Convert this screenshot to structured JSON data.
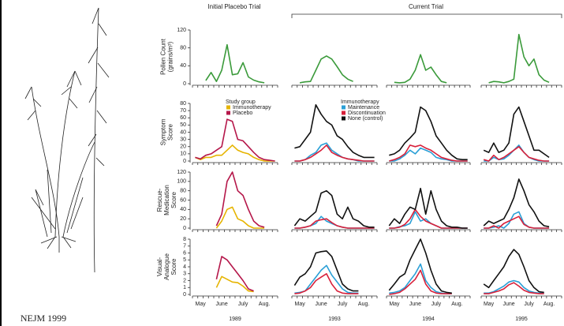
{
  "header": {
    "left": "Initial Placebo Trial",
    "right": "Current Trial"
  },
  "footer": "NEJM 1999",
  "chart_data": [
    {
      "type": "line",
      "ylabel": [
        "Pollen Count",
        "(grains/m³)"
      ],
      "ylim": [
        0,
        120
      ],
      "yticks": [
        0,
        40,
        80,
        120
      ],
      "series": [
        {
          "color": "#3a9a3a",
          "values": [
            null,
            null,
            7,
            25,
            5,
            30,
            87,
            20,
            22,
            47,
            15,
            8,
            4,
            2,
            null,
            null
          ]
        }
      ]
    },
    {
      "type": "line",
      "ylim": [
        0,
        120
      ],
      "series": [
        {
          "color": "#3a9a3a",
          "values": [
            null,
            2,
            4,
            5,
            30,
            55,
            62,
            55,
            38,
            20,
            10,
            5,
            null,
            null,
            null,
            null
          ]
        }
      ]
    },
    {
      "type": "line",
      "ylim": [
        0,
        120
      ],
      "series": [
        {
          "color": "#3a9a3a",
          "values": [
            null,
            3,
            2,
            3,
            10,
            30,
            65,
            30,
            37,
            20,
            5,
            2,
            null,
            null,
            null,
            null
          ]
        }
      ]
    },
    {
      "type": "line",
      "ylim": [
        0,
        120
      ],
      "series": [
        {
          "color": "#3a9a3a",
          "values": [
            null,
            2,
            5,
            4,
            2,
            5,
            10,
            110,
            60,
            40,
            55,
            20,
            8,
            3,
            null,
            null
          ]
        }
      ]
    },
    {
      "type": "line",
      "ylabel": [
        "Symptom",
        "Score"
      ],
      "ylim": [
        0,
        80
      ],
      "yticks": [
        0,
        10,
        20,
        30,
        40,
        50,
        60,
        70,
        80
      ],
      "legend_title": "Study group",
      "series": [
        {
          "name": "Immunotherapy",
          "color": "#e6b400",
          "values": [
            5,
            2,
            5,
            5,
            8,
            8,
            15,
            22,
            15,
            12,
            10,
            5,
            2,
            0,
            0,
            0
          ]
        },
        {
          "name": "Placebo",
          "color": "#b5174a",
          "values": [
            5,
            3,
            8,
            10,
            15,
            20,
            58,
            55,
            30,
            28,
            20,
            12,
            5,
            2,
            1,
            0
          ]
        }
      ]
    },
    {
      "type": "line",
      "ylim": [
        0,
        80
      ],
      "legend_title": "Immunotherapy",
      "series": [
        {
          "name": "Maintenance",
          "color": "#2a9fd6",
          "values": [
            0,
            0,
            2,
            8,
            12,
            22,
            25,
            15,
            10,
            5,
            3,
            2,
            0,
            0,
            0,
            0
          ]
        },
        {
          "name": "Discontinuation",
          "color": "#d8203a",
          "values": [
            0,
            0,
            2,
            5,
            10,
            15,
            22,
            12,
            8,
            5,
            3,
            2,
            1,
            0,
            0,
            0
          ]
        },
        {
          "name": "None (control)",
          "color": "#111111",
          "values": [
            18,
            20,
            30,
            40,
            78,
            65,
            55,
            50,
            35,
            30,
            20,
            12,
            8,
            5,
            5,
            5
          ]
        }
      ]
    },
    {
      "type": "line",
      "ylim": [
        0,
        80
      ],
      "series": [
        {
          "color": "#2a9fd6",
          "values": [
            0,
            0,
            3,
            8,
            15,
            10,
            18,
            15,
            12,
            5,
            3,
            2,
            0,
            0,
            0,
            0
          ]
        },
        {
          "color": "#d8203a",
          "values": [
            0,
            2,
            5,
            10,
            22,
            20,
            22,
            18,
            15,
            10,
            5,
            3,
            1,
            0,
            0,
            0
          ]
        },
        {
          "color": "#111111",
          "values": [
            8,
            10,
            15,
            25,
            32,
            40,
            75,
            70,
            55,
            35,
            25,
            15,
            8,
            3,
            2,
            2
          ]
        }
      ]
    },
    {
      "type": "line",
      "ylim": [
        0,
        80
      ],
      "series": [
        {
          "color": "#2a9fd6",
          "values": [
            0,
            0,
            5,
            2,
            3,
            8,
            15,
            22,
            12,
            5,
            2,
            0,
            0,
            0,
            null,
            null
          ]
        },
        {
          "color": "#d8203a",
          "values": [
            2,
            0,
            8,
            2,
            5,
            10,
            15,
            20,
            12,
            5,
            3,
            1,
            0,
            0,
            null,
            null
          ]
        },
        {
          "color": "#111111",
          "values": [
            15,
            12,
            25,
            12,
            15,
            25,
            65,
            75,
            55,
            35,
            15,
            15,
            10,
            5,
            null,
            null
          ]
        }
      ]
    },
    {
      "type": "line",
      "ylabel": [
        "Rescue-",
        "Medication",
        "Score"
      ],
      "ylim": [
        0,
        120
      ],
      "yticks": [
        0,
        20,
        40,
        60,
        80,
        100,
        120
      ],
      "series": [
        {
          "color": "#e6b400",
          "values": [
            null,
            null,
            null,
            null,
            0,
            15,
            40,
            45,
            20,
            15,
            5,
            0,
            0,
            0,
            null,
            null
          ]
        },
        {
          "color": "#b5174a",
          "values": [
            null,
            null,
            null,
            null,
            5,
            30,
            100,
            120,
            80,
            70,
            40,
            15,
            5,
            2,
            null,
            null
          ]
        }
      ]
    },
    {
      "type": "line",
      "ylim": [
        0,
        120
      ],
      "series": [
        {
          "color": "#2a9fd6",
          "values": [
            0,
            0,
            2,
            5,
            10,
            25,
            15,
            10,
            5,
            2,
            0,
            0,
            0,
            0,
            0,
            0
          ]
        },
        {
          "color": "#d8203a",
          "values": [
            0,
            0,
            2,
            5,
            15,
            18,
            20,
            12,
            5,
            2,
            0,
            0,
            0,
            0,
            0,
            0
          ]
        },
        {
          "color": "#111111",
          "values": [
            5,
            20,
            15,
            25,
            35,
            75,
            80,
            70,
            30,
            20,
            45,
            20,
            15,
            5,
            2,
            2
          ]
        }
      ]
    },
    {
      "type": "line",
      "ylim": [
        0,
        120
      ],
      "series": [
        {
          "color": "#2a9fd6",
          "values": [
            0,
            0,
            3,
            5,
            10,
            35,
            15,
            20,
            10,
            5,
            0,
            0,
            0,
            0,
            0,
            0
          ]
        },
        {
          "color": "#d8203a",
          "values": [
            0,
            0,
            2,
            8,
            20,
            40,
            25,
            15,
            10,
            5,
            0,
            0,
            0,
            0,
            0,
            0
          ]
        },
        {
          "color": "#111111",
          "values": [
            5,
            20,
            10,
            30,
            45,
            40,
            85,
            30,
            80,
            40,
            15,
            5,
            2,
            2,
            0,
            0
          ]
        }
      ]
    },
    {
      "type": "line",
      "ylim": [
        0,
        120
      ],
      "series": [
        {
          "color": "#2a9fd6",
          "values": [
            0,
            0,
            2,
            5,
            0,
            10,
            30,
            35,
            10,
            2,
            0,
            0,
            0,
            0,
            null,
            null
          ]
        },
        {
          "color": "#d8203a",
          "values": [
            0,
            0,
            5,
            0,
            10,
            15,
            20,
            25,
            8,
            2,
            0,
            0,
            0,
            0,
            null,
            null
          ]
        },
        {
          "color": "#111111",
          "values": [
            5,
            15,
            10,
            15,
            20,
            40,
            65,
            105,
            80,
            50,
            35,
            15,
            5,
            3,
            null,
            null
          ]
        }
      ]
    },
    {
      "type": "line",
      "ylabel": [
        "Visual-",
        "Analogue",
        "Score"
      ],
      "ylim": [
        0,
        8
      ],
      "yticks": [
        0,
        1,
        2,
        3,
        4,
        5,
        6,
        7,
        8
      ],
      "xlabel": "1989",
      "categories": [
        null,
        "May",
        null,
        null,
        null,
        "June",
        null,
        null,
        null,
        "July",
        null,
        null,
        null,
        "Aug.",
        null,
        null
      ],
      "series": [
        {
          "color": "#e6b400",
          "values": [
            null,
            null,
            null,
            null,
            1,
            2.6,
            2.2,
            1.8,
            1.7,
            1.2,
            0.5,
            0.4,
            null,
            null,
            null,
            null
          ]
        },
        {
          "color": "#b5174a",
          "values": [
            null,
            null,
            null,
            null,
            2.2,
            5.5,
            5,
            4,
            3,
            2,
            0.8,
            0.5,
            null,
            null,
            null,
            null
          ]
        }
      ]
    },
    {
      "type": "line",
      "ylim": [
        0,
        8
      ],
      "xlabel": "1993",
      "categories": [
        null,
        "May",
        null,
        null,
        null,
        "June",
        null,
        null,
        null,
        "July",
        null,
        null,
        null,
        "Aug.",
        null,
        null
      ],
      "series": [
        {
          "color": "#2a9fd6",
          "values": [
            0.2,
            0.3,
            0.5,
            1.5,
            2.5,
            3.5,
            4.2,
            2.8,
            1.8,
            0.8,
            0.3,
            0.2,
            0.2,
            null,
            null,
            null
          ]
        },
        {
          "color": "#d8203a",
          "values": [
            0.1,
            0.2,
            0.5,
            1,
            2,
            2.5,
            3,
            1.5,
            0.5,
            0.2,
            0.1,
            0.1,
            0.1,
            null,
            null,
            null
          ]
        },
        {
          "color": "#111111",
          "values": [
            1.3,
            2.5,
            3,
            4,
            6,
            6.2,
            6.3,
            5.5,
            3.5,
            1.5,
            0.8,
            0.5,
            0.5,
            null,
            null,
            null
          ]
        }
      ]
    },
    {
      "type": "line",
      "ylim": [
        0,
        8
      ],
      "xlabel": "1994",
      "categories": [
        null,
        "May",
        null,
        null,
        null,
        "June",
        null,
        null,
        null,
        "July",
        null,
        null,
        null,
        "Aug.",
        null,
        null
      ],
      "series": [
        {
          "color": "#2a9fd6",
          "values": [
            0.2,
            0.3,
            0.5,
            1,
            2,
            3,
            4.4,
            2,
            1,
            0.4,
            0.2,
            0.1,
            0.1,
            null,
            null,
            null
          ]
        },
        {
          "color": "#d8203a",
          "values": [
            0,
            0.1,
            0.3,
            0.8,
            1.5,
            2.2,
            3.5,
            1.5,
            0.5,
            0.2,
            0.1,
            0.1,
            0.1,
            null,
            null,
            null
          ]
        },
        {
          "color": "#111111",
          "values": [
            0.6,
            1.5,
            2.5,
            3,
            5,
            6.5,
            8,
            6,
            3.5,
            1.5,
            0.5,
            0.3,
            0.2,
            null,
            null,
            null
          ]
        }
      ]
    },
    {
      "type": "line",
      "ylim": [
        0,
        8
      ],
      "xlabel": "1995",
      "categories": [
        null,
        "May",
        null,
        null,
        null,
        "June",
        null,
        null,
        null,
        "July",
        null,
        null,
        null,
        "Aug.",
        null,
        null
      ],
      "series": [
        {
          "color": "#2a9fd6",
          "values": [
            0.2,
            0.2,
            0.4,
            0.8,
            1.2,
            1.8,
            2,
            1.8,
            1,
            0.5,
            0.3,
            0.2,
            0.2,
            null,
            null,
            null
          ]
        },
        {
          "color": "#d8203a",
          "values": [
            0.1,
            0.1,
            0.3,
            0.5,
            0.8,
            1.4,
            1.7,
            1.2,
            0.6,
            0.3,
            0.2,
            0.1,
            0.1,
            null,
            null,
            null
          ]
        },
        {
          "color": "#111111",
          "values": [
            1.5,
            1,
            2,
            3,
            4,
            5.5,
            6.5,
            5.8,
            4,
            2,
            1,
            0.4,
            0.3,
            null,
            null,
            null
          ]
        }
      ]
    }
  ]
}
